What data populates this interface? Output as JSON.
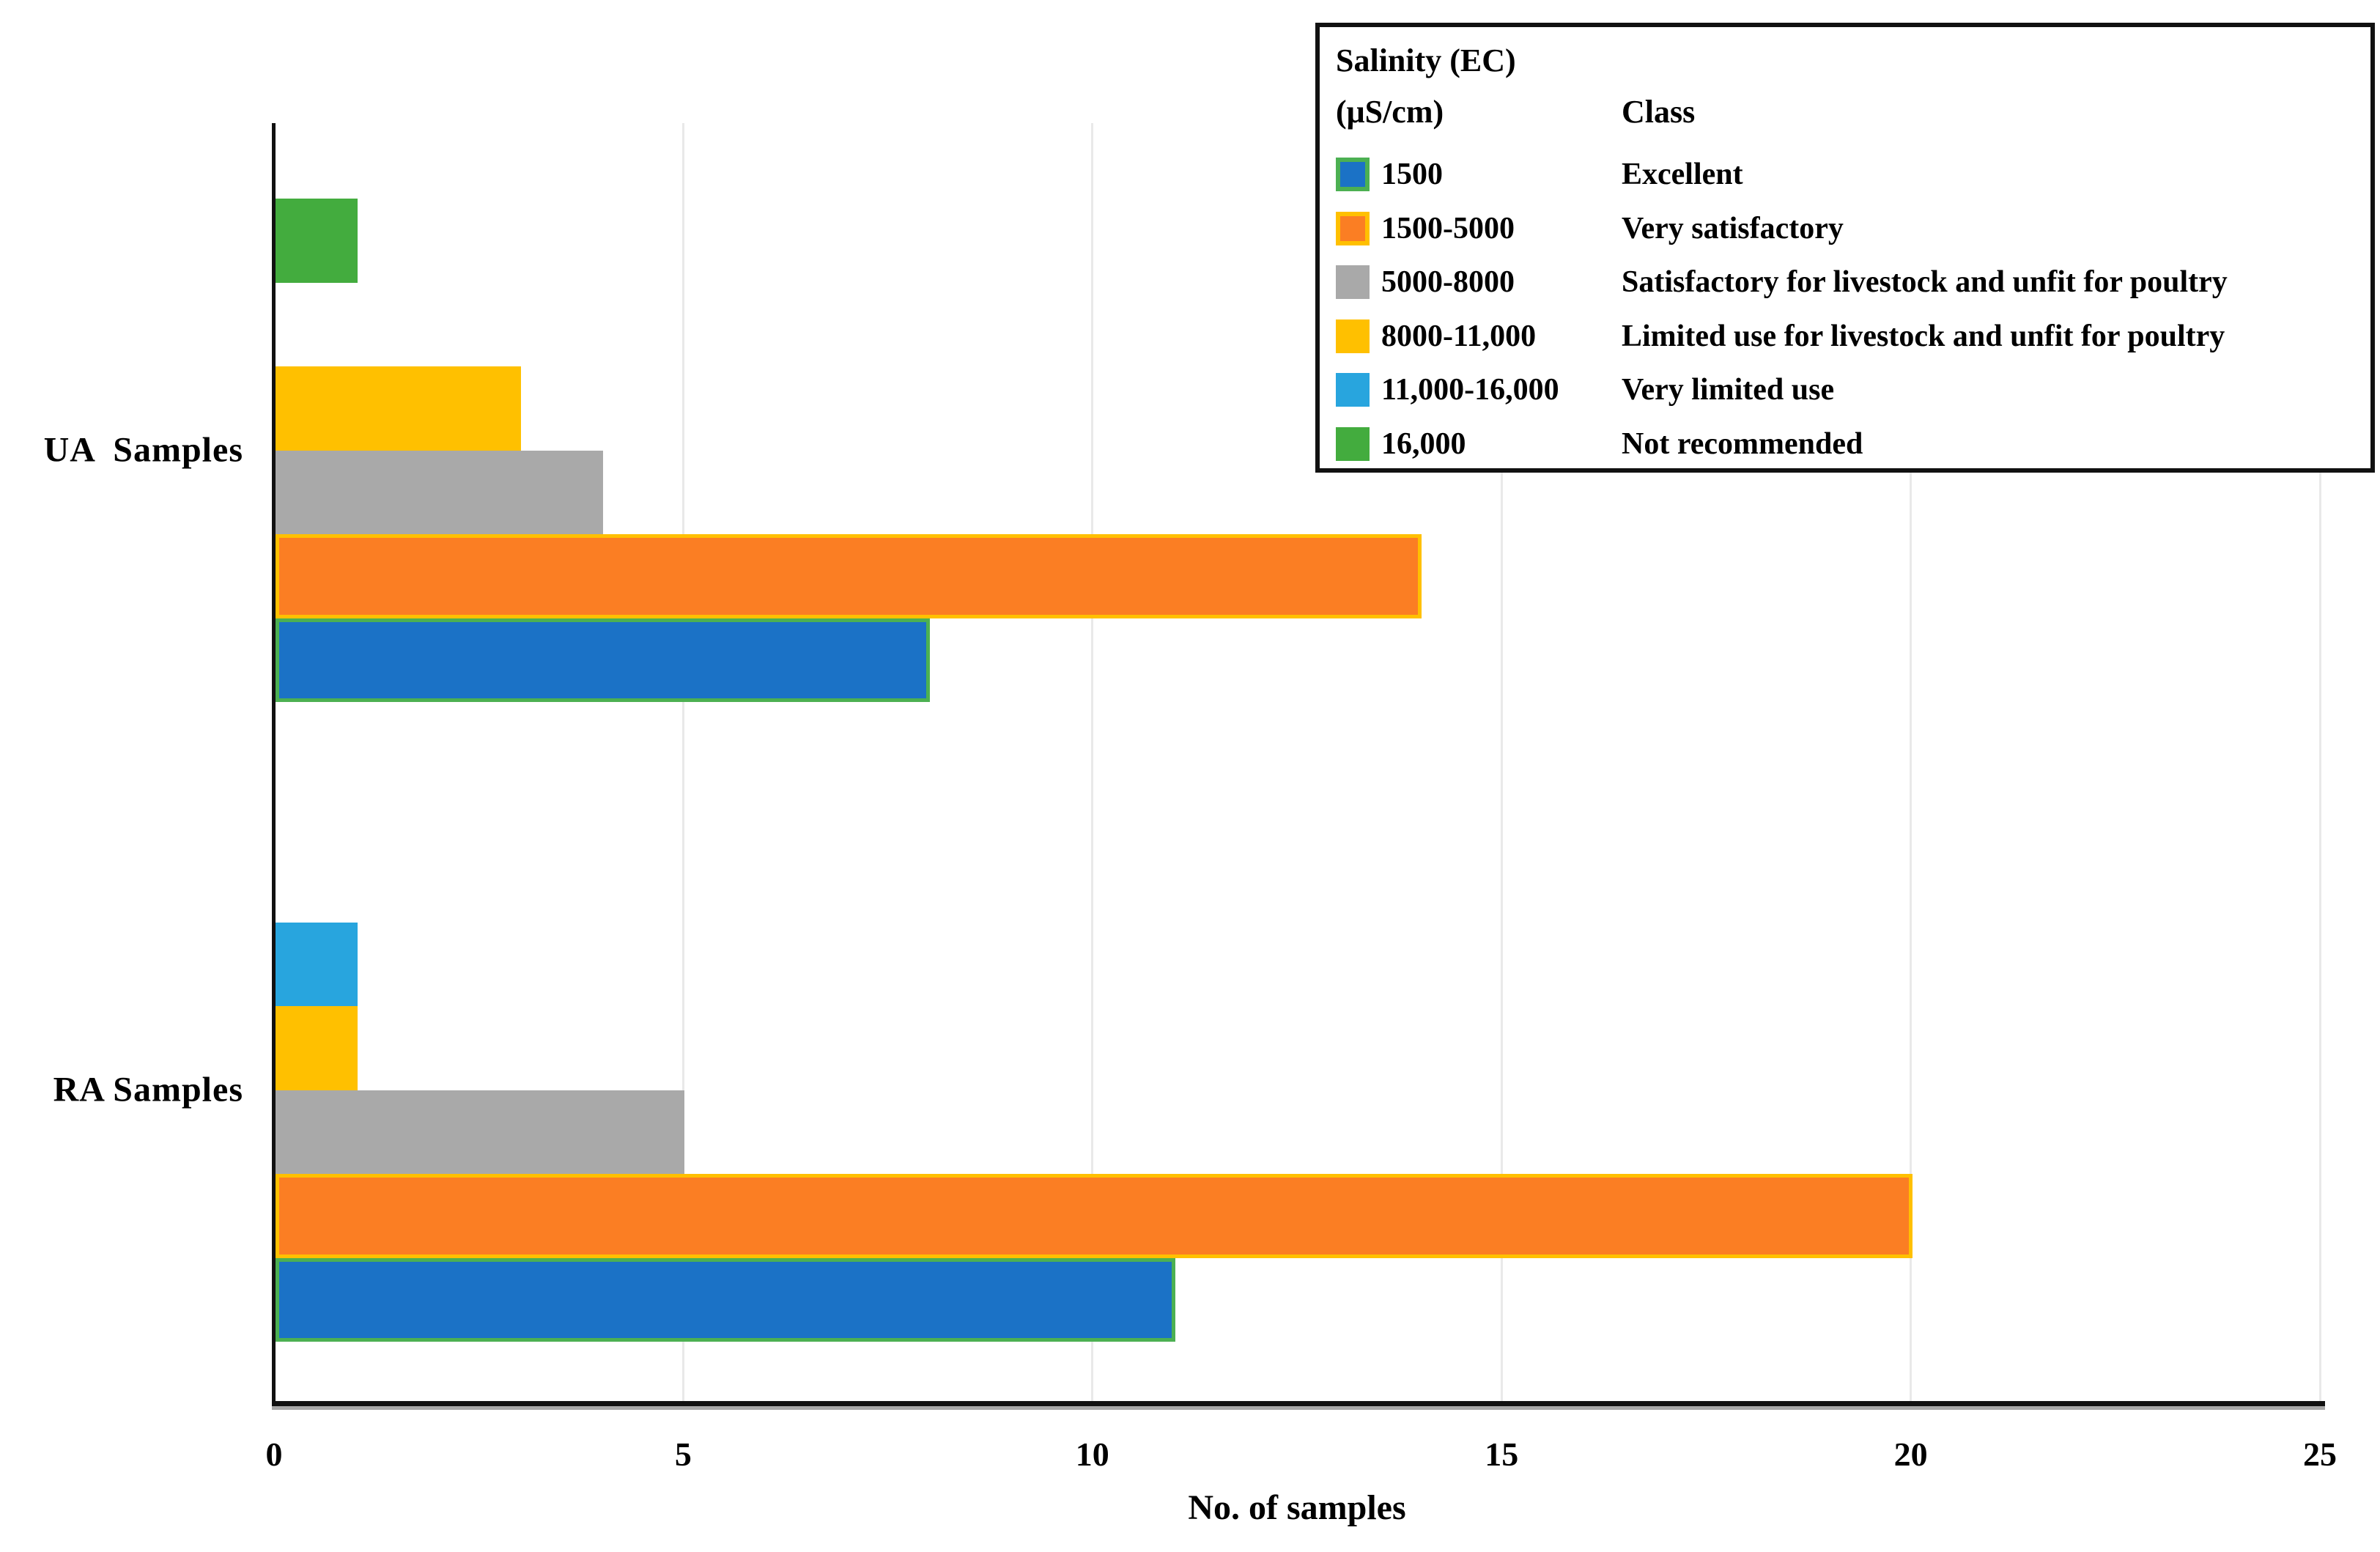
{
  "chart_data": {
    "type": "bar",
    "orientation": "horizontal",
    "title": "",
    "xlabel": "No. of samples",
    "xlim": [
      0,
      25
    ],
    "x_ticks": [
      0,
      5,
      10,
      15,
      20,
      25
    ],
    "grid": "vertical light-gray gridlines at each x tick",
    "legend_position": "top-right boxed",
    "categories": [
      "UA  Samples",
      "RA Samples"
    ],
    "bar_order_top_to_bottom": [
      "16,000",
      "11,000-16,000",
      "8000-11,000",
      "5000-8000",
      "1500-5000",
      "1500"
    ],
    "series": [
      {
        "salinity_range": "1500",
        "class_label": "Excellent",
        "color": "#1B72C6",
        "border_color": "#4CB052",
        "values": [
          8,
          11
        ]
      },
      {
        "salinity_range": "1500-5000",
        "class_label": "Very satisfactory",
        "color": "#FB7E23",
        "border_color": "#FFC000",
        "values": [
          14,
          20
        ]
      },
      {
        "salinity_range": "5000-8000",
        "class_label": "Satisfactory for livestock and unfit for poultry",
        "color": "#A9A9A9",
        "border_color": null,
        "values": [
          4,
          5
        ]
      },
      {
        "salinity_range": "8000-11,000",
        "class_label": "Limited use for livestock and unfit for poultry",
        "color": "#FFC000",
        "border_color": null,
        "values": [
          3,
          1
        ]
      },
      {
        "salinity_range": "11,000-16,000",
        "class_label": "Very limited use",
        "color": "#28A5DE",
        "border_color": null,
        "values": [
          0,
          1
        ]
      },
      {
        "salinity_range": "16,000",
        "class_label": "Not recommended",
        "color": "#43AC3E",
        "border_color": null,
        "values": [
          1,
          0
        ]
      }
    ]
  },
  "legend": {
    "header_col1_line1": "Salinity (EC)",
    "header_col1_line2": "(μS/cm)",
    "header_col2": "Class"
  },
  "axis": {
    "tick_labels": [
      "0",
      "5",
      "10",
      "15",
      "20",
      "25"
    ],
    "title": "No. of samples"
  },
  "category_labels": {
    "ua": "UA  Samples",
    "ra": "RA Samples"
  }
}
